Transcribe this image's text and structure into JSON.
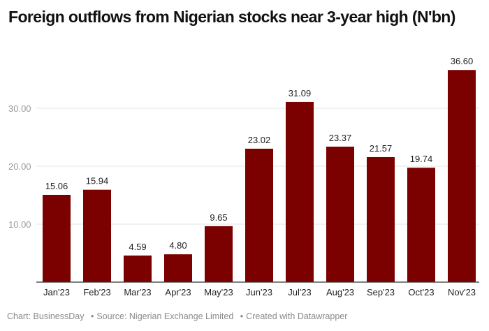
{
  "chart_data": {
    "type": "bar",
    "title": "Foreign outflows from Nigerian stocks near 3-year high (N'bn)",
    "categories": [
      "Jan'23",
      "Feb'23",
      "Mar'23",
      "Apr'23",
      "May'23",
      "Jun'23",
      "Jul'23",
      "Aug'23",
      "Sep'23",
      "Oct'23",
      "Nov'23"
    ],
    "values": [
      15.06,
      15.94,
      4.59,
      4.8,
      9.65,
      23.02,
      31.09,
      23.37,
      21.57,
      19.74,
      36.6
    ],
    "data_labels": [
      "15.06",
      "15.94",
      "4.59",
      "4.80",
      "9.65",
      "23.02",
      "31.09",
      "23.37",
      "21.57",
      "19.74",
      "36.60"
    ],
    "yticks": [
      10,
      20,
      30
    ],
    "ytick_labels": [
      "10.00",
      "20.00",
      "30.00"
    ],
    "ylim": [
      0,
      37
    ],
    "xlabel": "",
    "ylabel": "",
    "grid": true,
    "bar_color": "#7b0000"
  },
  "footer": {
    "chart_credit": "Chart: BusinessDay",
    "source": "Source: Nigerian Exchange Limited",
    "created": "Created with Datawrapper",
    "separator": "•"
  }
}
